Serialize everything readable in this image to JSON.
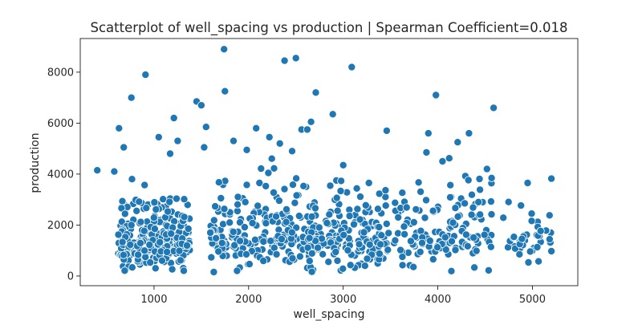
{
  "chart_data": {
    "type": "scatter",
    "title": "Scatterplot of well_spacing vs production | Spearman Coefficient=0.018",
    "xlabel": "well_spacing",
    "ylabel": "production",
    "xlim": [
      220,
      5480
    ],
    "ylim": [
      -380,
      9320
    ],
    "xticks": [
      1000,
      2000,
      3000,
      4000,
      5000
    ],
    "yticks": [
      0,
      2000,
      4000,
      6000,
      8000
    ],
    "grid": false,
    "marker_color": "#1f77b4",
    "marker_edge_color": "#ffffff",
    "outliers": [
      [
        760,
        7000
      ],
      [
        910,
        7900
      ],
      [
        1210,
        6200
      ],
      [
        1450,
        6850
      ],
      [
        1500,
        6700
      ],
      [
        1550,
        5850
      ],
      [
        1740,
        8900
      ],
      [
        1750,
        7250
      ],
      [
        2380,
        8450
      ],
      [
        2500,
        8550
      ],
      [
        2560,
        5750
      ],
      [
        2710,
        7200
      ],
      [
        2890,
        6350
      ],
      [
        3090,
        8200
      ],
      [
        3460,
        5700
      ],
      [
        3900,
        5600
      ],
      [
        3980,
        7100
      ],
      [
        4330,
        5600
      ],
      [
        4590,
        6600
      ],
      [
        630,
        5800
      ],
      [
        680,
        5050
      ],
      [
        1050,
        5450
      ],
      [
        1170,
        4800
      ],
      [
        1250,
        5300
      ],
      [
        1530,
        5050
      ],
      [
        1840,
        5300
      ],
      [
        1980,
        4950
      ],
      [
        2080,
        5800
      ],
      [
        2220,
        5450
      ],
      [
        2330,
        5200
      ],
      [
        2460,
        4900
      ],
      [
        2620,
        5750
      ],
      [
        2660,
        6050
      ],
      [
        3000,
        4350
      ],
      [
        4210,
        5250
      ],
      [
        400,
        4150
      ],
      [
        580,
        4100
      ],
      [
        3880,
        4850
      ],
      [
        4050,
        4500
      ],
      [
        4520,
        4200
      ],
      [
        4950,
        3650
      ]
    ],
    "clusters": [
      {
        "x_center": 1000,
        "x_spread": 380,
        "y_center": 1350,
        "y_spread": 900,
        "count": 260,
        "seed": 11
      },
      {
        "x_center": 2150,
        "x_spread": 560,
        "y_center": 1550,
        "y_spread": 1050,
        "count": 220,
        "seed": 23
      },
      {
        "x_center": 3050,
        "x_spread": 430,
        "y_center": 1500,
        "y_spread": 1050,
        "count": 170,
        "seed": 37
      },
      {
        "x_center": 4050,
        "x_spread": 520,
        "y_center": 1700,
        "y_spread": 1150,
        "count": 140,
        "seed": 53
      },
      {
        "x_center": 4950,
        "x_spread": 260,
        "y_center": 1500,
        "y_spread": 800,
        "count": 45,
        "seed": 71
      }
    ],
    "y_floor": 150
  }
}
